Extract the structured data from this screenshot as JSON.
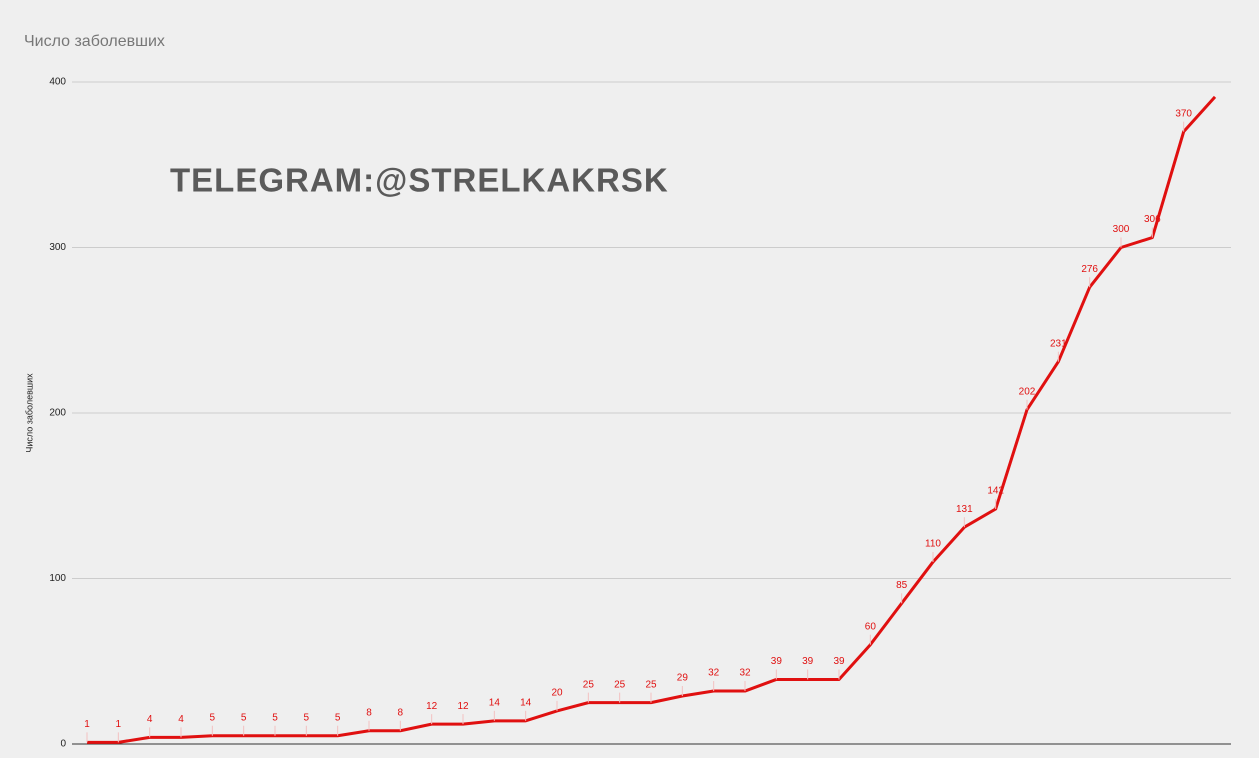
{
  "chart_data": {
    "type": "line",
    "title": "Число заболевших",
    "y_label": "Число заболевших",
    "watermark": "TELEGRAM:@STRELKAKRSK",
    "values": [
      1,
      1,
      4,
      4,
      5,
      5,
      5,
      5,
      5,
      8,
      8,
      12,
      12,
      14,
      14,
      20,
      25,
      25,
      25,
      29,
      32,
      32,
      39,
      39,
      39,
      60,
      85,
      110,
      131,
      142,
      202,
      231,
      276,
      300,
      306,
      370,
      391
    ],
    "value_labels": [
      "1",
      "1",
      "4",
      "4",
      "5",
      "5",
      "5",
      "5",
      "5",
      "8",
      "8",
      "12",
      "12",
      "14",
      "14",
      "20",
      "25",
      "25",
      "25",
      "29",
      "32",
      "32",
      "39",
      "39",
      "39",
      "60",
      "85",
      "110",
      "131",
      "142",
      "202",
      "231",
      "276",
      "300",
      "306",
      "370",
      null
    ],
    "color": "#e01010",
    "ylim": [
      0,
      400
    ],
    "yticks": [
      0,
      100,
      200,
      300,
      400
    ],
    "grid": true
  }
}
